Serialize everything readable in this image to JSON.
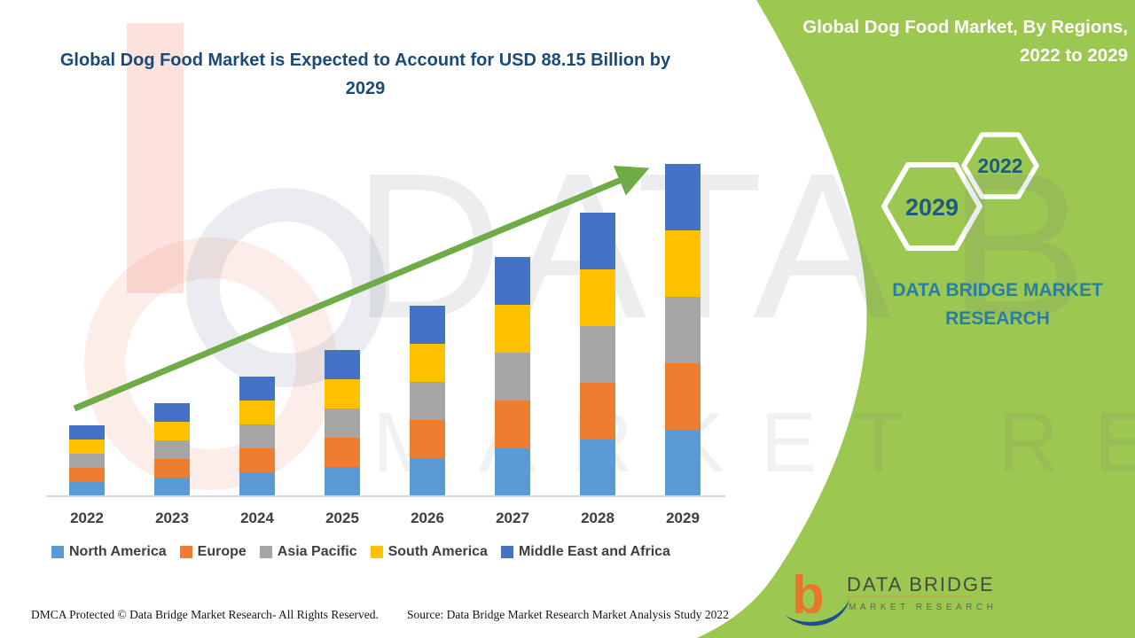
{
  "title": "Global Dog Food Market is Expected to Account for USD 88.15 Billion by 2029",
  "side_panel": {
    "heading": "Global Dog Food Market, By Regions, 2022 to 2029",
    "hexagon_large_year": "2029",
    "hexagon_small_year": "2022",
    "brand_name": "DATA BRIDGE MARKET RESEARCH",
    "background_color": "#9CC751",
    "heading_color": "#FFFFFF",
    "year_text_color": "#1F5B7E",
    "brand_text_color": "#2C7E9E"
  },
  "logo": {
    "primary": "DATA BRIDGE",
    "secondary": "MARKET RESEARCH",
    "b_color": "#E8772E",
    "swoosh_color": "#1F4E8C"
  },
  "watermark": {
    "top_text": "DATA B",
    "bottom_text": "MARKET RESEARCH"
  },
  "footer": {
    "dmca": "DMCA Protected © Data Bridge Market Research- All Rights Reserved.",
    "source": "Source: Data Bridge Market Research Market Analysis Study 2022"
  },
  "chart_data": {
    "type": "bar",
    "stacked": true,
    "title": "Global Dog Food Market is Expected to Account for USD 88.15 Billion by 2029",
    "unit": "USD Billion",
    "categories": [
      "2022",
      "2023",
      "2024",
      "2025",
      "2026",
      "2027",
      "2028",
      "2029"
    ],
    "series": [
      {
        "name": "North America",
        "color": "#5B9BD5",
        "values": [
          3.77,
          5.04,
          6.36,
          7.64,
          10.08,
          12.58,
          15.08,
          17.63
        ]
      },
      {
        "name": "Europe",
        "color": "#ED7D31",
        "values": [
          3.77,
          5.04,
          6.36,
          7.64,
          10.08,
          12.58,
          15.08,
          17.63
        ]
      },
      {
        "name": "Asia Pacific",
        "color": "#A5A5A5",
        "values": [
          3.77,
          5.04,
          6.36,
          7.64,
          10.08,
          12.58,
          15.08,
          17.63
        ]
      },
      {
        "name": "South America",
        "color": "#FFC000",
        "values": [
          3.77,
          5.04,
          6.36,
          7.64,
          10.08,
          12.58,
          15.08,
          17.63
        ]
      },
      {
        "name": "Middle East and Africa",
        "color": "#4472C4",
        "values": [
          3.77,
          5.04,
          6.36,
          7.64,
          10.08,
          12.58,
          15.08,
          17.63
        ]
      }
    ],
    "totals": [
      18.85,
      25.2,
      31.8,
      38.2,
      50.4,
      62.9,
      75.4,
      88.15
    ],
    "ylim": [
      0,
      90
    ],
    "gridlines": false,
    "y_axis_visible": false,
    "legend_position": "bottom",
    "trend_arrow_color": "#6FAC47",
    "axis_line_color": "#D8D8D8",
    "label_color": "#3E3E3E"
  }
}
